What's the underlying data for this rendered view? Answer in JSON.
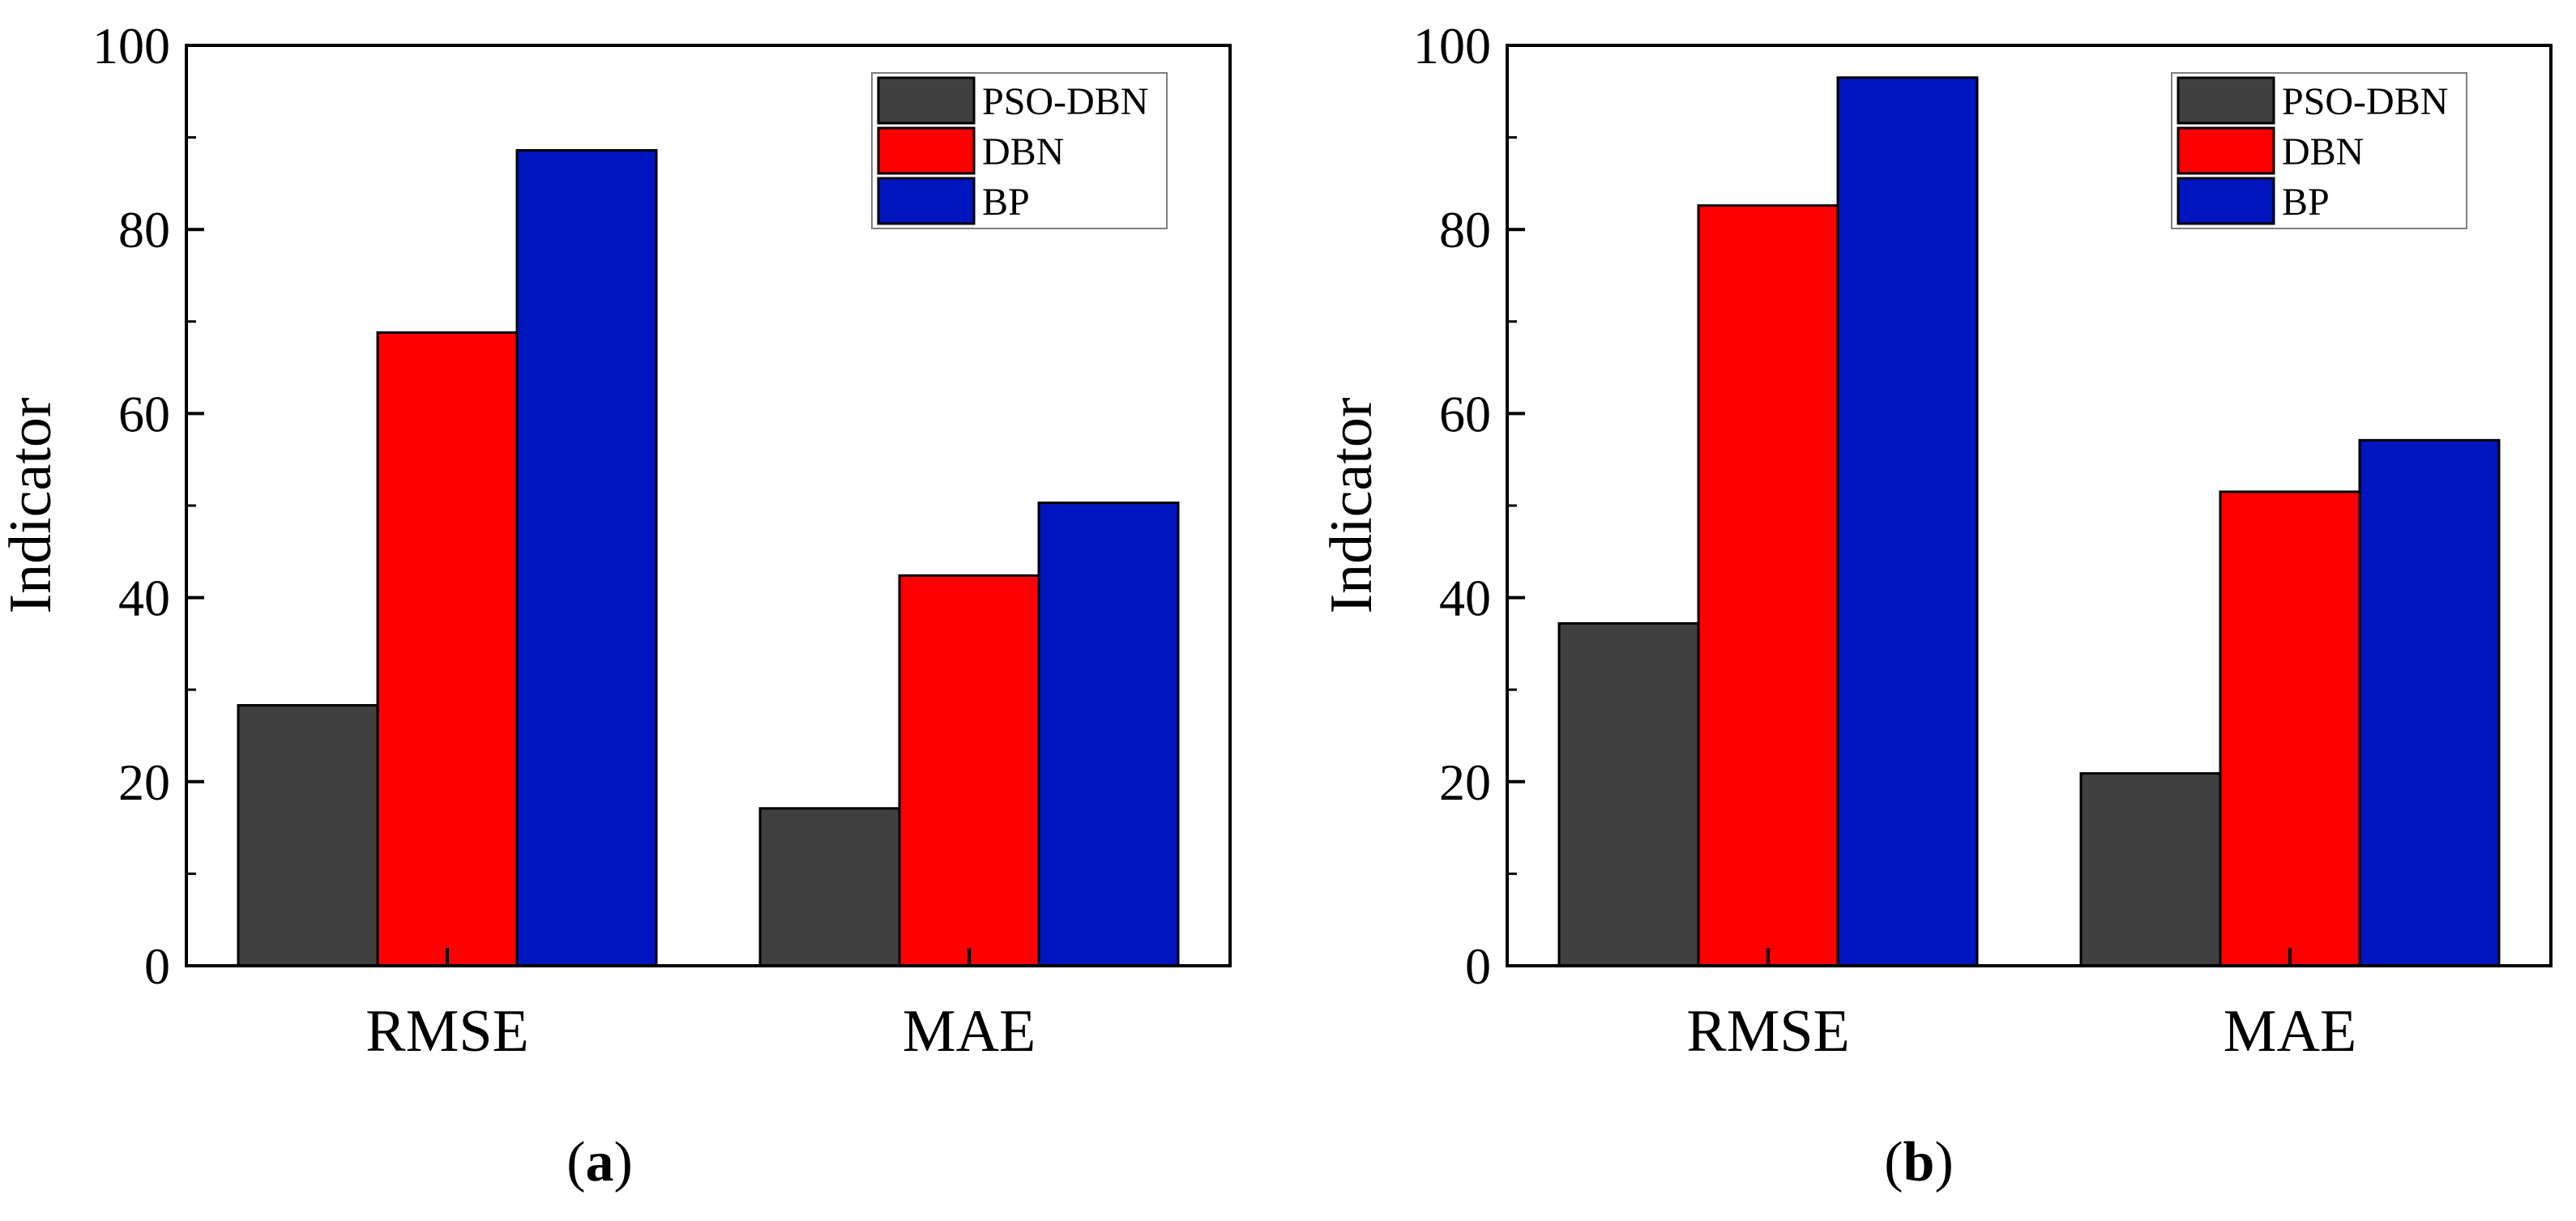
{
  "chart_data": [
    {
      "type": "bar",
      "panel": "a",
      "categories": [
        "RMSE",
        "MAE"
      ],
      "series": [
        {
          "name": "PSO-DBN",
          "color": "#404040",
          "values": [
            28.3,
            17.1
          ]
        },
        {
          "name": "DBN",
          "color": "#ff0000",
          "values": [
            68.8,
            42.4
          ]
        },
        {
          "name": "BP",
          "color": "#0015c0",
          "values": [
            88.6,
            50.3
          ]
        }
      ],
      "ylabel": "Indicator",
      "xlabel": "",
      "ylim": [
        0,
        100
      ],
      "yticks": [
        0,
        20,
        40,
        60,
        80,
        100
      ],
      "legend_position": "top-right",
      "grid": false
    },
    {
      "type": "bar",
      "panel": "b",
      "categories": [
        "RMSE",
        "MAE"
      ],
      "series": [
        {
          "name": "PSO-DBN",
          "color": "#404040",
          "values": [
            37.2,
            20.9
          ]
        },
        {
          "name": "DBN",
          "color": "#ff0000",
          "values": [
            82.6,
            51.5
          ]
        },
        {
          "name": "BP",
          "color": "#0015c0",
          "values": [
            96.5,
            57.1
          ]
        }
      ],
      "ylabel": "Indicator",
      "xlabel": "",
      "ylim": [
        0,
        100
      ],
      "yticks": [
        0,
        20,
        40,
        60,
        80,
        100
      ],
      "legend_position": "top-right",
      "grid": false
    }
  ],
  "captions": {
    "a": {
      "open": "(",
      "letter": "a",
      "close": ")"
    },
    "b": {
      "open": "(",
      "letter": "b",
      "close": ")"
    }
  }
}
